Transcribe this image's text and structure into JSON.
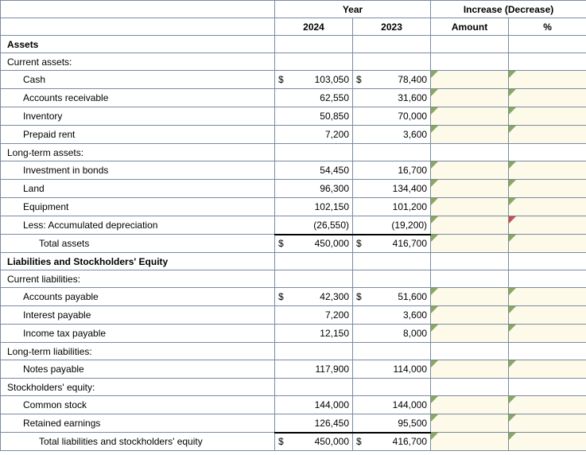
{
  "headers": {
    "year": "Year",
    "increase": "Increase (Decrease)",
    "c2024": "2024",
    "c2023": "2023",
    "amount": "Amount",
    "percent": "%"
  },
  "sections": {
    "assets": "Assets",
    "current_assets": "Current assets:",
    "long_term_assets": "Long-term assets:",
    "liab_eq": "Liabilities and Stockholders' Equity",
    "current_liab": "Current liabilities:",
    "long_term_liab": "Long-term liabilities:",
    "stockholders_eq": "Stockholders' equity:"
  },
  "rows": [
    {
      "id": "cash",
      "label": "Cash",
      "indent": "sub2",
      "cur": "$",
      "v2024": "103,050",
      "v2023": "78,400",
      "amt_red": false,
      "pct_red": false
    },
    {
      "id": "ar",
      "label": "Accounts receivable",
      "indent": "sub2",
      "cur": "",
      "v2024": "62,550",
      "v2023": "31,600",
      "amt_red": false,
      "pct_red": false
    },
    {
      "id": "inv",
      "label": "Inventory",
      "indent": "sub2",
      "cur": "",
      "v2024": "50,850",
      "v2023": "70,000",
      "amt_red": false,
      "pct_red": false
    },
    {
      "id": "prepaid",
      "label": "Prepaid rent",
      "indent": "sub2",
      "cur": "",
      "v2024": "7,200",
      "v2023": "3,600",
      "amt_red": false,
      "pct_red": false
    },
    {
      "id": "bonds",
      "label": "Investment in bonds",
      "indent": "sub2",
      "cur": "",
      "v2024": "54,450",
      "v2023": "16,700",
      "amt_red": false,
      "pct_red": false
    },
    {
      "id": "land",
      "label": "Land",
      "indent": "sub2",
      "cur": "",
      "v2024": "96,300",
      "v2023": "134,400",
      "amt_red": false,
      "pct_red": false
    },
    {
      "id": "equip",
      "label": "Equipment",
      "indent": "sub2",
      "cur": "",
      "v2024": "102,150",
      "v2023": "101,200",
      "amt_red": false,
      "pct_red": false
    },
    {
      "id": "accdep",
      "label": "Less: Accumulated depreciation",
      "indent": "sub2",
      "cur": "",
      "v2024": "(26,550)",
      "v2023": "(19,200)",
      "amt_red": false,
      "pct_red": true
    },
    {
      "id": "tassets",
      "label": "Total assets",
      "indent": "sub3",
      "cur": "$",
      "v2024": "450,000",
      "v2023": "416,700",
      "amt_red": false,
      "pct_red": false,
      "total": true
    },
    {
      "id": "ap",
      "label": "Accounts payable",
      "indent": "sub2",
      "cur": "$",
      "v2024": "42,300",
      "v2023": "51,600",
      "amt_red": false,
      "pct_red": false
    },
    {
      "id": "intpay",
      "label": "Interest payable",
      "indent": "sub2",
      "cur": "",
      "v2024": "7,200",
      "v2023": "3,600",
      "amt_red": false,
      "pct_red": false
    },
    {
      "id": "taxpay",
      "label": "Income tax payable",
      "indent": "sub2",
      "cur": "",
      "v2024": "12,150",
      "v2023": "8,000",
      "amt_red": false,
      "pct_red": false
    },
    {
      "id": "notes",
      "label": "Notes payable",
      "indent": "sub2",
      "cur": "",
      "v2024": "117,900",
      "v2023": "114,000",
      "amt_red": false,
      "pct_red": false
    },
    {
      "id": "cs",
      "label": "Common stock",
      "indent": "sub2",
      "cur": "",
      "v2024": "144,000",
      "v2023": "144,000",
      "amt_red": false,
      "pct_red": false
    },
    {
      "id": "re",
      "label": "Retained earnings",
      "indent": "sub2",
      "cur": "",
      "v2024": "126,450",
      "v2023": "95,500",
      "amt_red": false,
      "pct_red": false
    },
    {
      "id": "tliabeq",
      "label": "Total liabilities and stockholders' equity",
      "indent": "sub3",
      "cur": "$",
      "v2024": "450,000",
      "v2023": "416,700",
      "amt_red": false,
      "pct_red": false,
      "total": true
    }
  ],
  "colors": {
    "border": "#7a8aa0",
    "input_bg": "#fdfae9",
    "tab_green": "#8aa85f",
    "tab_red": "#c85050"
  }
}
